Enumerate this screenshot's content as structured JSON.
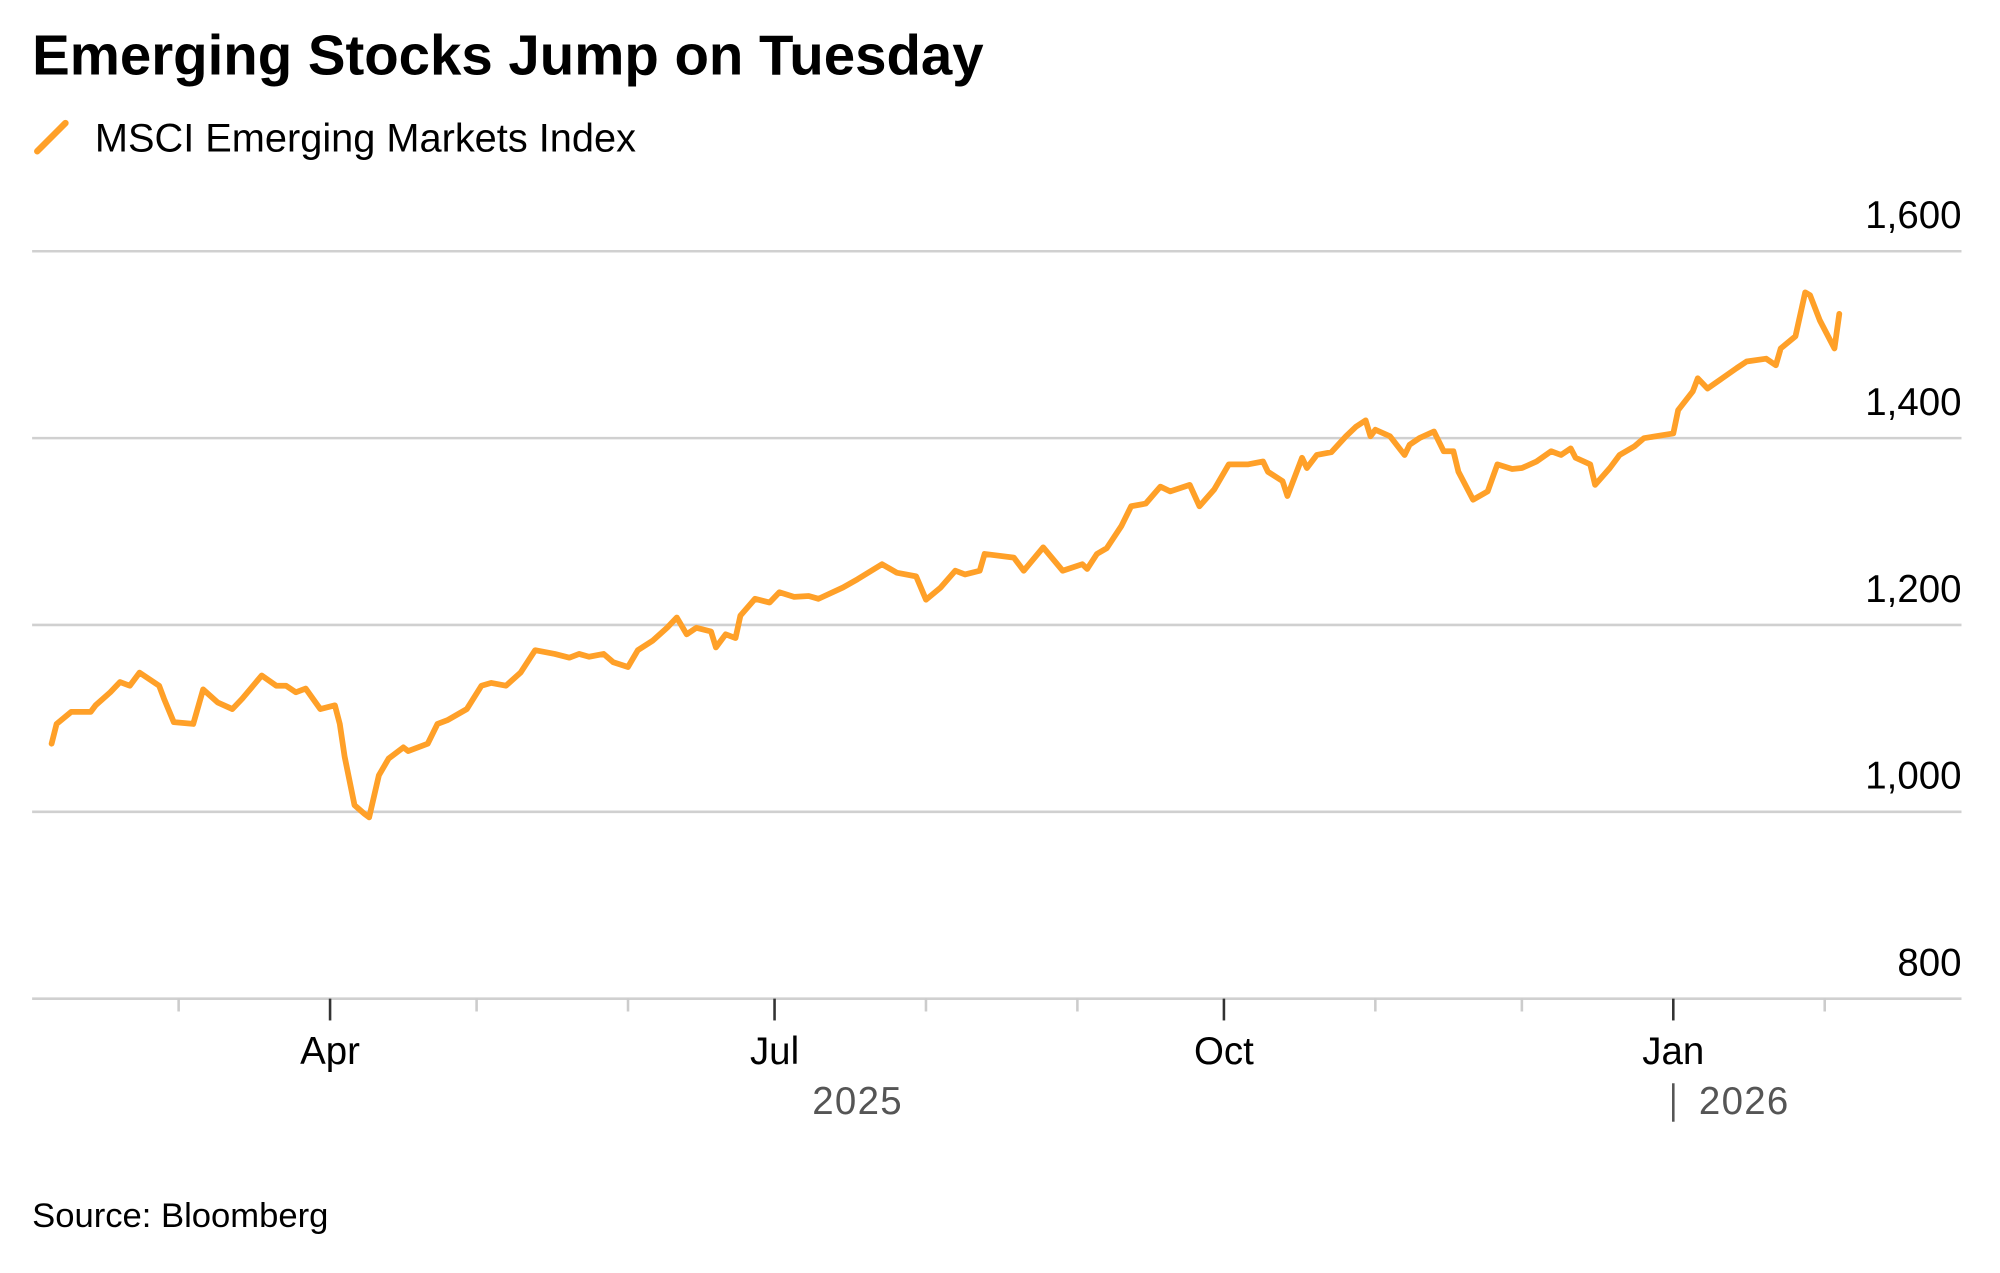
{
  "colors": {
    "line": "#FFA028",
    "grid": "#d0d0d0",
    "year": "#555555"
  },
  "chart_data": {
    "type": "line",
    "title": "Emerging Stocks Jump on Tuesday",
    "legend": [
      {
        "name": "MSCI Emerging Markets Index",
        "icon": "slash-line-icon"
      }
    ],
    "legend_placement": "top-left",
    "source": "Source: Bloomberg",
    "x_unit": "days since 2025-01-01",
    "xlim": [
      29,
      424
    ],
    "ylim": [
      800,
      1600
    ],
    "y_ticks": [
      {
        "value": 1600,
        "label": "1,600"
      },
      {
        "value": 1400,
        "label": "1,400"
      },
      {
        "value": 1200,
        "label": "1,200"
      },
      {
        "value": 1000,
        "label": "1,000"
      },
      {
        "value": 800,
        "label": "800"
      }
    ],
    "x_major_ticks": [
      {
        "day": 90,
        "label": "Apr"
      },
      {
        "day": 181,
        "label": "Jul"
      },
      {
        "day": 273,
        "label": "Oct"
      },
      {
        "day": 365,
        "label": "Jan"
      }
    ],
    "x_minor_ticks": [
      59,
      120,
      151,
      212,
      243,
      304,
      334,
      396
    ],
    "year_labels": [
      {
        "label": "2025",
        "center_day": 198,
        "divider": false
      },
      {
        "label": "2026",
        "center_day": 365,
        "divider": true
      }
    ],
    "grid": true,
    "series": [
      {
        "name": "MSCI Emerging Markets Index",
        "points": [
          [
            33,
            1073
          ],
          [
            34,
            1094
          ],
          [
            37,
            1107
          ],
          [
            41,
            1107
          ],
          [
            42,
            1114
          ],
          [
            45,
            1128
          ],
          [
            47,
            1139
          ],
          [
            49,
            1135
          ],
          [
            51,
            1149
          ],
          [
            55,
            1135
          ],
          [
            56,
            1121
          ],
          [
            58,
            1096
          ],
          [
            62,
            1094
          ],
          [
            64,
            1131
          ],
          [
            67,
            1117
          ],
          [
            70,
            1110
          ],
          [
            72,
            1121
          ],
          [
            76,
            1146
          ],
          [
            79,
            1135
          ],
          [
            81,
            1135
          ],
          [
            83,
            1128
          ],
          [
            85,
            1132
          ],
          [
            88,
            1110
          ],
          [
            91,
            1114
          ],
          [
            92,
            1094
          ],
          [
            93,
            1059
          ],
          [
            95,
            1007
          ],
          [
            97,
            998
          ],
          [
            98,
            994
          ],
          [
            100,
            1039
          ],
          [
            102,
            1057
          ],
          [
            105,
            1069
          ],
          [
            106,
            1065
          ],
          [
            110,
            1073
          ],
          [
            112,
            1094
          ],
          [
            114,
            1098
          ],
          [
            118,
            1110
          ],
          [
            121,
            1135
          ],
          [
            123,
            1138
          ],
          [
            126,
            1135
          ],
          [
            129,
            1149
          ],
          [
            132,
            1173
          ],
          [
            136,
            1169
          ],
          [
            139,
            1165
          ],
          [
            141,
            1169
          ],
          [
            143,
            1166
          ],
          [
            146,
            1169
          ],
          [
            148,
            1160
          ],
          [
            151,
            1155
          ],
          [
            153,
            1173
          ],
          [
            156,
            1183
          ],
          [
            159,
            1197
          ],
          [
            161,
            1208
          ],
          [
            163,
            1190
          ],
          [
            165,
            1197
          ],
          [
            168,
            1193
          ],
          [
            169,
            1176
          ],
          [
            171,
            1190
          ],
          [
            173,
            1186
          ],
          [
            174,
            1210
          ],
          [
            177,
            1228
          ],
          [
            180,
            1224
          ],
          [
            182,
            1235
          ],
          [
            185,
            1230
          ],
          [
            188,
            1231
          ],
          [
            190,
            1228
          ],
          [
            195,
            1240
          ],
          [
            198,
            1249
          ],
          [
            203,
            1265
          ],
          [
            206,
            1256
          ],
          [
            210,
            1252
          ],
          [
            212,
            1227
          ],
          [
            215,
            1240
          ],
          [
            218,
            1258
          ],
          [
            220,
            1254
          ],
          [
            223,
            1258
          ],
          [
            224,
            1276
          ],
          [
            230,
            1272
          ],
          [
            232,
            1258
          ],
          [
            236,
            1283
          ],
          [
            240,
            1258
          ],
          [
            244,
            1265
          ],
          [
            245,
            1260
          ],
          [
            247,
            1276
          ],
          [
            249,
            1282
          ],
          [
            252,
            1306
          ],
          [
            254,
            1327
          ],
          [
            257,
            1330
          ],
          [
            260,
            1348
          ],
          [
            262,
            1343
          ],
          [
            266,
            1350
          ],
          [
            268,
            1327
          ],
          [
            271,
            1345
          ],
          [
            274,
            1372
          ],
          [
            278,
            1372
          ],
          [
            281,
            1375
          ],
          [
            282,
            1364
          ],
          [
            285,
            1354
          ],
          [
            286,
            1338
          ],
          [
            289,
            1379
          ],
          [
            290,
            1368
          ],
          [
            292,
            1382
          ],
          [
            295,
            1385
          ],
          [
            298,
            1402
          ],
          [
            300,
            1412
          ],
          [
            302,
            1419
          ],
          [
            303,
            1402
          ],
          [
            304,
            1409
          ],
          [
            307,
            1402
          ],
          [
            310,
            1382
          ],
          [
            311,
            1393
          ],
          [
            313,
            1400
          ],
          [
            316,
            1407
          ],
          [
            318,
            1386
          ],
          [
            320,
            1386
          ],
          [
            321,
            1364
          ],
          [
            324,
            1334
          ],
          [
            327,
            1343
          ],
          [
            329,
            1372
          ],
          [
            332,
            1367
          ],
          [
            334,
            1368
          ],
          [
            337,
            1375
          ],
          [
            340,
            1386
          ],
          [
            342,
            1382
          ],
          [
            344,
            1389
          ],
          [
            345,
            1379
          ],
          [
            348,
            1372
          ],
          [
            349,
            1350
          ],
          [
            352,
            1368
          ],
          [
            354,
            1382
          ],
          [
            357,
            1391
          ],
          [
            359,
            1400
          ],
          [
            365,
            1405
          ],
          [
            366,
            1430
          ],
          [
            369,
            1450
          ],
          [
            370,
            1464
          ],
          [
            372,
            1453
          ],
          [
            375,
            1464
          ],
          [
            378,
            1475
          ],
          [
            380,
            1482
          ],
          [
            384,
            1485
          ],
          [
            386,
            1478
          ],
          [
            387,
            1496
          ],
          [
            390,
            1509
          ],
          [
            392,
            1556
          ],
          [
            393,
            1553
          ],
          [
            395,
            1526
          ],
          [
            398,
            1496
          ],
          [
            399,
            1533
          ]
        ]
      }
    ]
  }
}
